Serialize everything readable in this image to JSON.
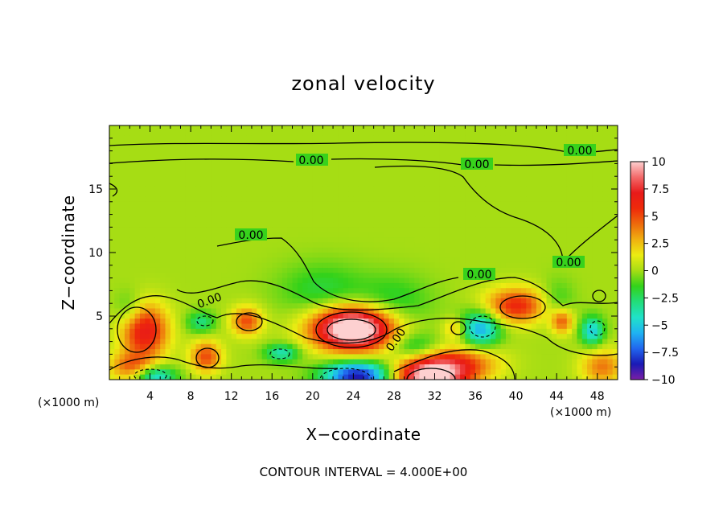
{
  "chart_data": {
    "type": "heatmap",
    "title": "zonal velocity",
    "xlabel": "X−coordinate",
    "ylabel": "Z−coordinate",
    "x_units_left": "(×1000 m)",
    "x_units_right": "(×1000 m)",
    "xlim": [
      0,
      50
    ],
    "ylim": [
      0,
      20
    ],
    "x_ticks": [
      "4",
      "8",
      "12",
      "16",
      "20",
      "24",
      "28",
      "32",
      "36",
      "40",
      "44",
      "48"
    ],
    "y_ticks": [
      "5",
      "10",
      "15"
    ],
    "footer": "CONTOUR INTERVAL = 4.000E+00",
    "colorbar": {
      "range": [
        -10,
        10
      ],
      "tick_labels": [
        "10",
        "7.5",
        "5",
        "2.5",
        "0",
        "−2.5",
        "−5",
        "−7.5",
        "−10"
      ],
      "colors": [
        "#7a1fa6",
        "#1a1ab5",
        "#2166ee",
        "#1fb3f2",
        "#20e2c8",
        "#22dd7a",
        "#33d21a",
        "#a6dd14",
        "#ecec12",
        "#f0b010",
        "#ee6a0c",
        "#ee2a0a",
        "#e81a1a",
        "#f36a6a",
        "#fdd0d0"
      ]
    },
    "contour_labels": [
      "0.00",
      "0.00",
      "0.00",
      "0.00",
      "0.00",
      "0.00",
      "0.00",
      "0.00"
    ],
    "anomalies": [
      {
        "x": 24,
        "z": 4.0,
        "amp": 13,
        "sx": 2.8,
        "sz": 1.2
      },
      {
        "x": 31.5,
        "z": 0.3,
        "amp": 11,
        "sx": 2.5,
        "sz": 1.1
      },
      {
        "x": 35,
        "z": 1.3,
        "amp": 4,
        "sx": 2.5,
        "sz": 1.0
      },
      {
        "x": 3.5,
        "z": 3.8,
        "amp": 7,
        "sx": 1.6,
        "sz": 1.5
      },
      {
        "x": 9.5,
        "z": 1.8,
        "amp": 5,
        "sx": 1.1,
        "sz": 0.9
      },
      {
        "x": 13.5,
        "z": 4.6,
        "amp": 5,
        "sx": 1.1,
        "sz": 0.8
      },
      {
        "x": 40,
        "z": 5.8,
        "amp": 6,
        "sx": 2.2,
        "sz": 1.0
      },
      {
        "x": 44.5,
        "z": 4.6,
        "amp": 5,
        "sx": 0.8,
        "sz": 0.7
      },
      {
        "x": 48.5,
        "z": 1.0,
        "amp": 4,
        "sx": 1.5,
        "sz": 1.0
      },
      {
        "x": 2,
        "z": 1.0,
        "amp": 4,
        "sx": 1.5,
        "sz": 0.8
      },
      {
        "x": 34,
        "z": 4.0,
        "amp": 3,
        "sx": 0.8,
        "sz": 0.6
      },
      {
        "x": 24.5,
        "z": 0.3,
        "amp": -9,
        "sx": 2.4,
        "sz": 0.8
      },
      {
        "x": 4.5,
        "z": 0.3,
        "amp": -5,
        "sx": 1.4,
        "sz": 0.5
      },
      {
        "x": 36.5,
        "z": 4.0,
        "amp": -6,
        "sx": 1.4,
        "sz": 1.0
      },
      {
        "x": 47.5,
        "z": 3.8,
        "amp": -5,
        "sx": 0.8,
        "sz": 0.8
      },
      {
        "x": 17,
        "z": 2.1,
        "amp": -4,
        "sx": 1.2,
        "sz": 0.5
      },
      {
        "x": 30,
        "z": 2.5,
        "amp": -3,
        "sx": 1.8,
        "sz": 0.8
      },
      {
        "x": 9,
        "z": 4.5,
        "amp": -3,
        "sx": 1.0,
        "sz": 0.6
      },
      {
        "x": 21,
        "z": 7.0,
        "amp": -2,
        "sx": 3.0,
        "sz": 1.5
      },
      {
        "x": 28,
        "z": 6.0,
        "amp": -2,
        "sx": 2.5,
        "sz": 1.5
      },
      {
        "x": 44,
        "z": 6.0,
        "amp": -2,
        "sx": 1.2,
        "sz": 1.2
      },
      {
        "x": 2,
        "z": 5.5,
        "amp": -2,
        "sx": 1.0,
        "sz": 1.0
      }
    ],
    "grid": false
  }
}
